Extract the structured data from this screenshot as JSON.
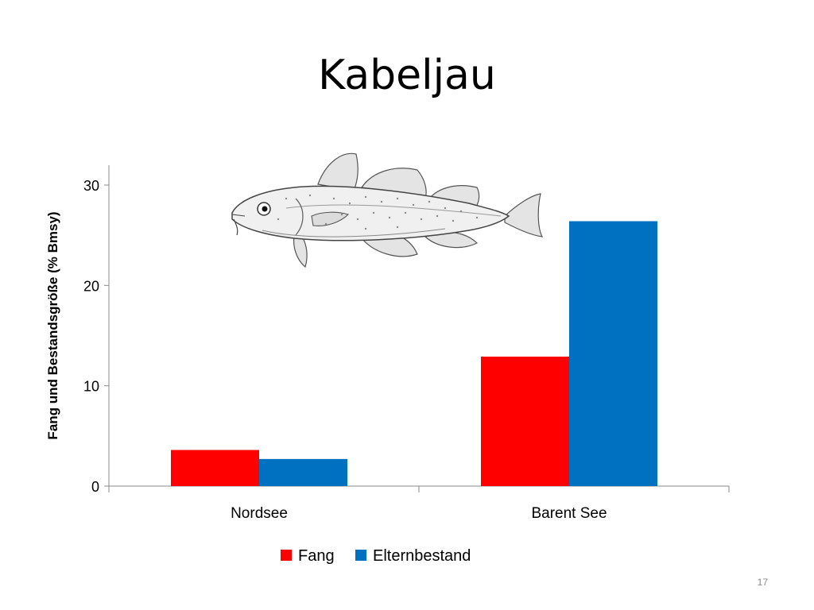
{
  "slide": {
    "title": "Kabeljau",
    "page_number": "17"
  },
  "chart_data": {
    "type": "bar",
    "title": "",
    "categories": [
      "Nordsee",
      "Barent See"
    ],
    "series": [
      {
        "name": "Fang",
        "values": [
          3.6,
          12.9
        ],
        "color": "#ff0000"
      },
      {
        "name": "Elternbestand",
        "values": [
          2.7,
          26.4
        ],
        "color": "#0070c0"
      }
    ],
    "xlabel": "",
    "ylabel": "Fang und Bestandsgröße (% Bmsy)",
    "ylim": [
      0,
      30
    ],
    "yticks": [
      0,
      10,
      20,
      30
    ],
    "grid": false,
    "legend": "bottom"
  },
  "decorations": {
    "image_icon": "cod-fish-illustration"
  }
}
